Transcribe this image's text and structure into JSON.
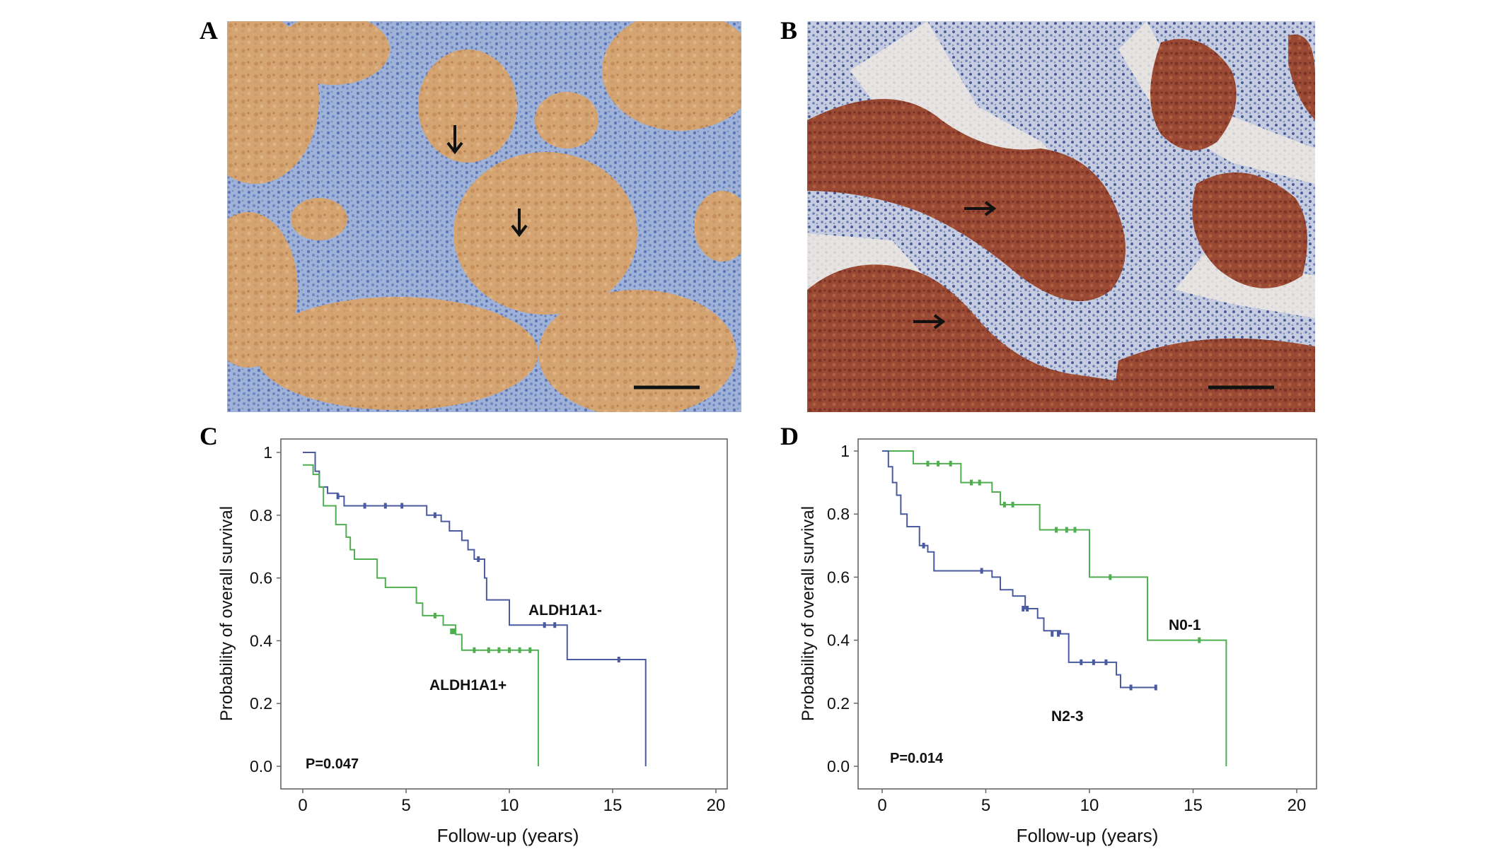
{
  "panels": {
    "a": {
      "letter": "A"
    },
    "b": {
      "letter": "B"
    },
    "c": {
      "letter": "C"
    },
    "d": {
      "letter": "D"
    }
  },
  "colors": {
    "blue_series": "#4a5aa0",
    "green_series": "#4fae4f",
    "frame": "#666666"
  },
  "chart_data": [
    {
      "type": "line",
      "panel": "C",
      "xlabel": "Follow-up (years)",
      "ylabel": "Probability of overall survival",
      "xlim": [
        0,
        20
      ],
      "ylim": [
        0,
        1
      ],
      "xticks": [
        "0",
        "5",
        "10",
        "15",
        "20"
      ],
      "yticks": [
        "0.0",
        "0.2",
        "0.4",
        "0.6",
        "0.8",
        "1"
      ],
      "pvalue": "P=0.047",
      "series": [
        {
          "name": "ALDH1A1-",
          "color": "#4a5aa0",
          "steps": [
            [
              0,
              1.0
            ],
            [
              0.6,
              0.94
            ],
            [
              0.8,
              0.89
            ],
            [
              1.2,
              0.87
            ],
            [
              1.7,
              0.86
            ],
            [
              2.0,
              0.83
            ],
            [
              6.0,
              0.8
            ],
            [
              6.7,
              0.78
            ],
            [
              7.1,
              0.75
            ],
            [
              7.7,
              0.72
            ],
            [
              8.0,
              0.69
            ],
            [
              8.3,
              0.66
            ],
            [
              8.8,
              0.6
            ],
            [
              8.9,
              0.53
            ],
            [
              10.0,
              0.45
            ],
            [
              12.0,
              0.45
            ],
            [
              12.8,
              0.34
            ],
            [
              16.6,
              0.34
            ],
            [
              16.6,
              0.0
            ]
          ],
          "censor": [
            [
              1.7,
              0.86
            ],
            [
              3.0,
              0.83
            ],
            [
              4.0,
              0.83
            ],
            [
              4.8,
              0.83
            ],
            [
              6.4,
              0.8
            ],
            [
              8.5,
              0.66
            ],
            [
              11.7,
              0.45
            ],
            [
              12.2,
              0.45
            ],
            [
              15.3,
              0.34
            ]
          ]
        },
        {
          "name": "ALDH1A1+",
          "color": "#4fae4f",
          "steps": [
            [
              0,
              0.96
            ],
            [
              0.5,
              0.93
            ],
            [
              0.8,
              0.89
            ],
            [
              1.0,
              0.83
            ],
            [
              1.6,
              0.77
            ],
            [
              2.1,
              0.73
            ],
            [
              2.3,
              0.69
            ],
            [
              2.5,
              0.66
            ],
            [
              3.6,
              0.6
            ],
            [
              4.0,
              0.57
            ],
            [
              5.5,
              0.52
            ],
            [
              5.8,
              0.48
            ],
            [
              6.8,
              0.45
            ],
            [
              7.4,
              0.42
            ],
            [
              7.7,
              0.37
            ],
            [
              11.4,
              0.37
            ],
            [
              11.4,
              0.0
            ]
          ],
          "censor": [
            [
              6.4,
              0.48
            ],
            [
              7.2,
              0.43
            ],
            [
              7.3,
              0.43
            ],
            [
              8.3,
              0.37
            ],
            [
              9.0,
              0.37
            ],
            [
              9.5,
              0.37
            ],
            [
              10.0,
              0.37
            ],
            [
              10.5,
              0.37
            ],
            [
              11.0,
              0.37
            ]
          ]
        }
      ]
    },
    {
      "type": "line",
      "panel": "D",
      "xlabel": "Follow-up (years)",
      "ylabel": "Probability of overall survival",
      "xlim": [
        0,
        20
      ],
      "ylim": [
        0,
        1
      ],
      "xticks": [
        "0",
        "5",
        "10",
        "15",
        "20"
      ],
      "yticks": [
        "0.0",
        "0.2",
        "0.4",
        "0.6",
        "0.8",
        "1"
      ],
      "pvalue": "P=0.014",
      "series": [
        {
          "name": "N0-1",
          "color": "#4fae4f",
          "steps": [
            [
              0,
              1.0
            ],
            [
              1.5,
              0.96
            ],
            [
              3.8,
              0.9
            ],
            [
              5.3,
              0.87
            ],
            [
              5.7,
              0.83
            ],
            [
              7.6,
              0.75
            ],
            [
              10.0,
              0.6
            ],
            [
              12.8,
              0.4
            ],
            [
              16.6,
              0.4
            ],
            [
              16.6,
              0.0
            ]
          ],
          "censor": [
            [
              2.2,
              0.96
            ],
            [
              2.7,
              0.96
            ],
            [
              3.3,
              0.96
            ],
            [
              4.3,
              0.9
            ],
            [
              4.7,
              0.9
            ],
            [
              5.9,
              0.83
            ],
            [
              6.3,
              0.83
            ],
            [
              8.4,
              0.75
            ],
            [
              8.9,
              0.75
            ],
            [
              9.3,
              0.75
            ],
            [
              11.0,
              0.6
            ],
            [
              15.3,
              0.4
            ]
          ]
        },
        {
          "name": "N2-3",
          "color": "#4a5aa0",
          "steps": [
            [
              0,
              1.0
            ],
            [
              0.3,
              0.95
            ],
            [
              0.5,
              0.9
            ],
            [
              0.7,
              0.86
            ],
            [
              0.9,
              0.8
            ],
            [
              1.2,
              0.76
            ],
            [
              1.8,
              0.7
            ],
            [
              2.2,
              0.68
            ],
            [
              2.5,
              0.62
            ],
            [
              5.3,
              0.6
            ],
            [
              5.7,
              0.56
            ],
            [
              6.3,
              0.54
            ],
            [
              6.9,
              0.5
            ],
            [
              7.5,
              0.47
            ],
            [
              7.8,
              0.43
            ],
            [
              8.6,
              0.42
            ],
            [
              9.0,
              0.33
            ],
            [
              11.3,
              0.29
            ],
            [
              11.5,
              0.25
            ],
            [
              13.2,
              0.25
            ]
          ],
          "censor": [
            [
              2.0,
              0.7
            ],
            [
              4.8,
              0.62
            ],
            [
              6.8,
              0.5
            ],
            [
              7.0,
              0.5
            ],
            [
              8.2,
              0.42
            ],
            [
              8.5,
              0.42
            ],
            [
              9.6,
              0.33
            ],
            [
              10.2,
              0.33
            ],
            [
              10.8,
              0.33
            ],
            [
              12.0,
              0.25
            ],
            [
              13.2,
              0.25
            ]
          ]
        }
      ]
    }
  ]
}
